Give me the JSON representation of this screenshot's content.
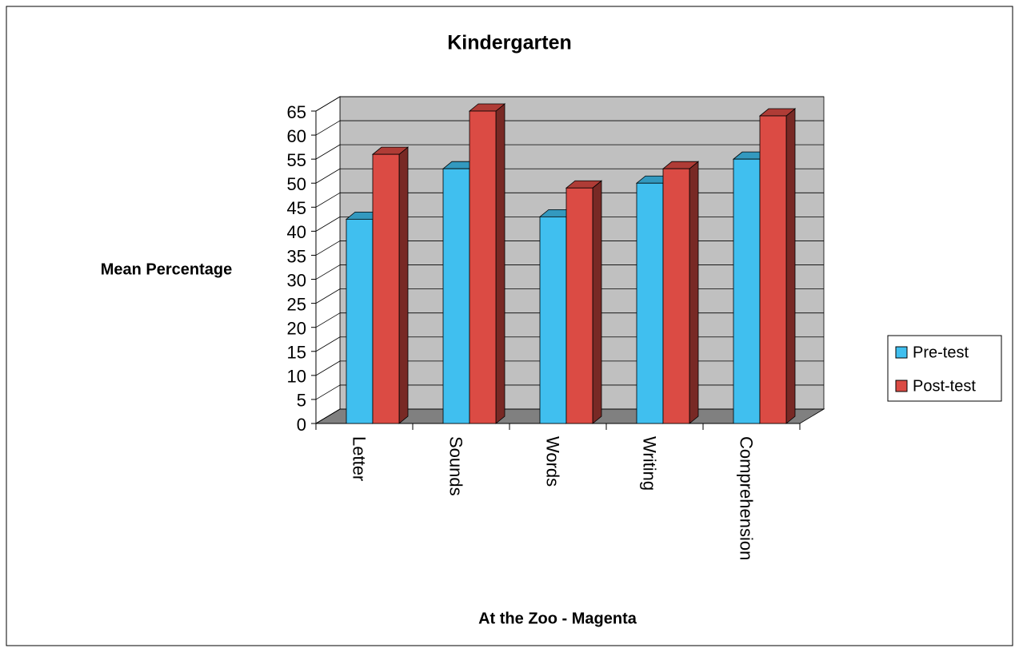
{
  "chart_data": {
    "type": "bar3d",
    "title": "Kindergarten",
    "xlabel": "At the Zoo - Magenta",
    "ylabel": "Mean Percentage",
    "categories": [
      "Letter",
      "Sounds",
      "Words",
      "Writing",
      "Comprehension"
    ],
    "series": [
      {
        "name": "Pre-test",
        "color": "#40bfef",
        "values": [
          42.5,
          53,
          43,
          50,
          55
        ]
      },
      {
        "name": "Post-test",
        "color": "#db4b44",
        "values": [
          56,
          65,
          49,
          53,
          64
        ]
      }
    ],
    "ylim": [
      0,
      65
    ],
    "yticks": [
      0,
      5,
      10,
      15,
      20,
      25,
      30,
      35,
      40,
      45,
      50,
      55,
      60,
      65
    ],
    "grid": true,
    "legend": "right"
  }
}
